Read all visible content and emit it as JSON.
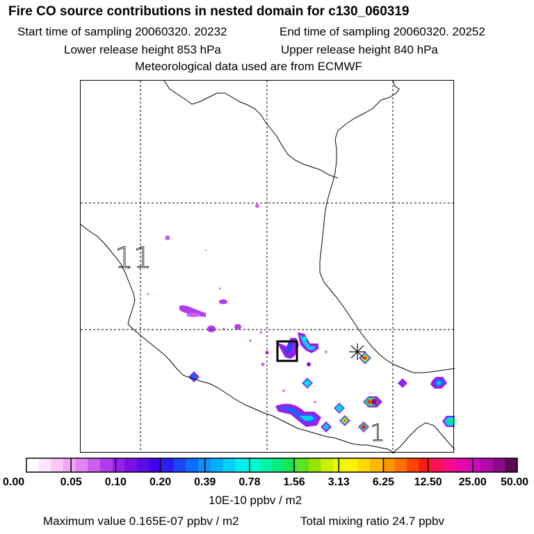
{
  "header": {
    "title": "Fire CO source contributions in nested domain for c130_060319",
    "start_time": "Start time of sampling 20060320. 20232",
    "end_time": "End time of sampling 20060320. 20252",
    "lower_height": "Lower release height  853 hPa",
    "upper_height": "Upper release height  840 hPa",
    "met_data": "Meteorological data used are from ECMWF"
  },
  "chart_data": {
    "type": "heatmap",
    "title": "Fire CO source contributions in nested domain for c130_060319",
    "colorbar": {
      "tick_labels": [
        "0.00",
        "0.05",
        "0.10",
        "0.20",
        "0.39",
        "0.78",
        "1.56",
        "3.13",
        "6.25",
        "12.50",
        "25.00",
        "50.00"
      ],
      "unit": "10E-10 ppbv / m2",
      "colors": [
        "#ffffff",
        "#fde6fd",
        "#f9c8f9",
        "#f0a6f4",
        "#e183f3",
        "#cc5ff0",
        "#b23ced",
        "#9522ea",
        "#7a11e6",
        "#5f0be8",
        "#4200ee",
        "#2b1ff5",
        "#1d45fa",
        "#0f6bfd",
        "#0b90fd",
        "#00b1ff",
        "#00cff6",
        "#00edf0",
        "#00fad0",
        "#00f5a8",
        "#00ec7c",
        "#1fe44f",
        "#5ee11f",
        "#9ae500",
        "#c7ef00",
        "#e8fa00",
        "#fff400",
        "#ffd800",
        "#ffb800",
        "#ff9600",
        "#ff7000",
        "#ff4300",
        "#ff1a1a",
        "#ff0f5a",
        "#f70a8c",
        "#e608ab",
        "#cf0ab8",
        "#b00aaa",
        "#8c0a8a",
        "#5c0a52"
      ]
    },
    "grid": true,
    "colormap_legend": "bottom"
  },
  "footer": {
    "max_value": "Maximum value  0.165E-07 ppbv / m2",
    "total_mixing": "Total mixing ratio       24.7 ppbv"
  },
  "map_labels": {
    "map_label_a": "11",
    "map_label_b": "1"
  }
}
